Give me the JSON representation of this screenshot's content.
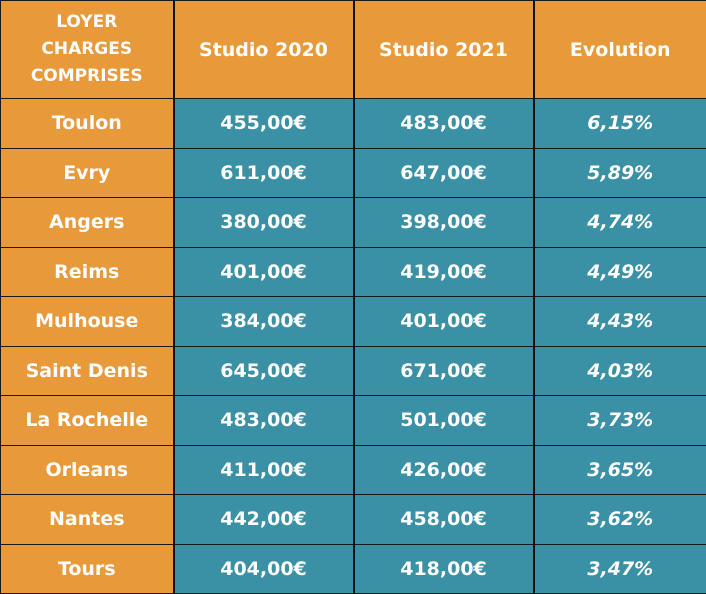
{
  "header": {
    "city_label_lines": [
      "LOYER",
      "CHARGES",
      "COMPRISES"
    ],
    "col_2020": "Studio 2020",
    "col_2021": "Studio 2021",
    "col_evolution": "Evolution"
  },
  "rows": [
    {
      "city": "Toulon",
      "studio_2020": "455,00€",
      "studio_2021": "483,00€",
      "evolution": "6,15%"
    },
    {
      "city": "Evry",
      "studio_2020": "611,00€",
      "studio_2021": "647,00€",
      "evolution": "5,89%"
    },
    {
      "city": "Angers",
      "studio_2020": "380,00€",
      "studio_2021": "398,00€",
      "evolution": "4,74%"
    },
    {
      "city": "Reims",
      "studio_2020": "401,00€",
      "studio_2021": "419,00€",
      "evolution": "4,49%"
    },
    {
      "city": "Mulhouse",
      "studio_2020": "384,00€",
      "studio_2021": "401,00€",
      "evolution": "4,43%"
    },
    {
      "city": "Saint Denis",
      "studio_2020": "645,00€",
      "studio_2021": "671,00€",
      "evolution": "4,03%"
    },
    {
      "city": "La Rochelle",
      "studio_2020": "483,00€",
      "studio_2021": "501,00€",
      "evolution": "3,73%"
    },
    {
      "city": "Orleans",
      "studio_2020": "411,00€",
      "studio_2021": "426,00€",
      "evolution": "3,65%"
    },
    {
      "city": "Nantes",
      "studio_2020": "442,00€",
      "studio_2021": "458,00€",
      "evolution": "3,62%"
    },
    {
      "city": "Tours",
      "studio_2020": "404,00€",
      "studio_2021": "418,00€",
      "evolution": "3,47%"
    }
  ],
  "colors": {
    "orange": "#e8993a",
    "teal": "#3a90a5",
    "text": "#ffffff"
  }
}
